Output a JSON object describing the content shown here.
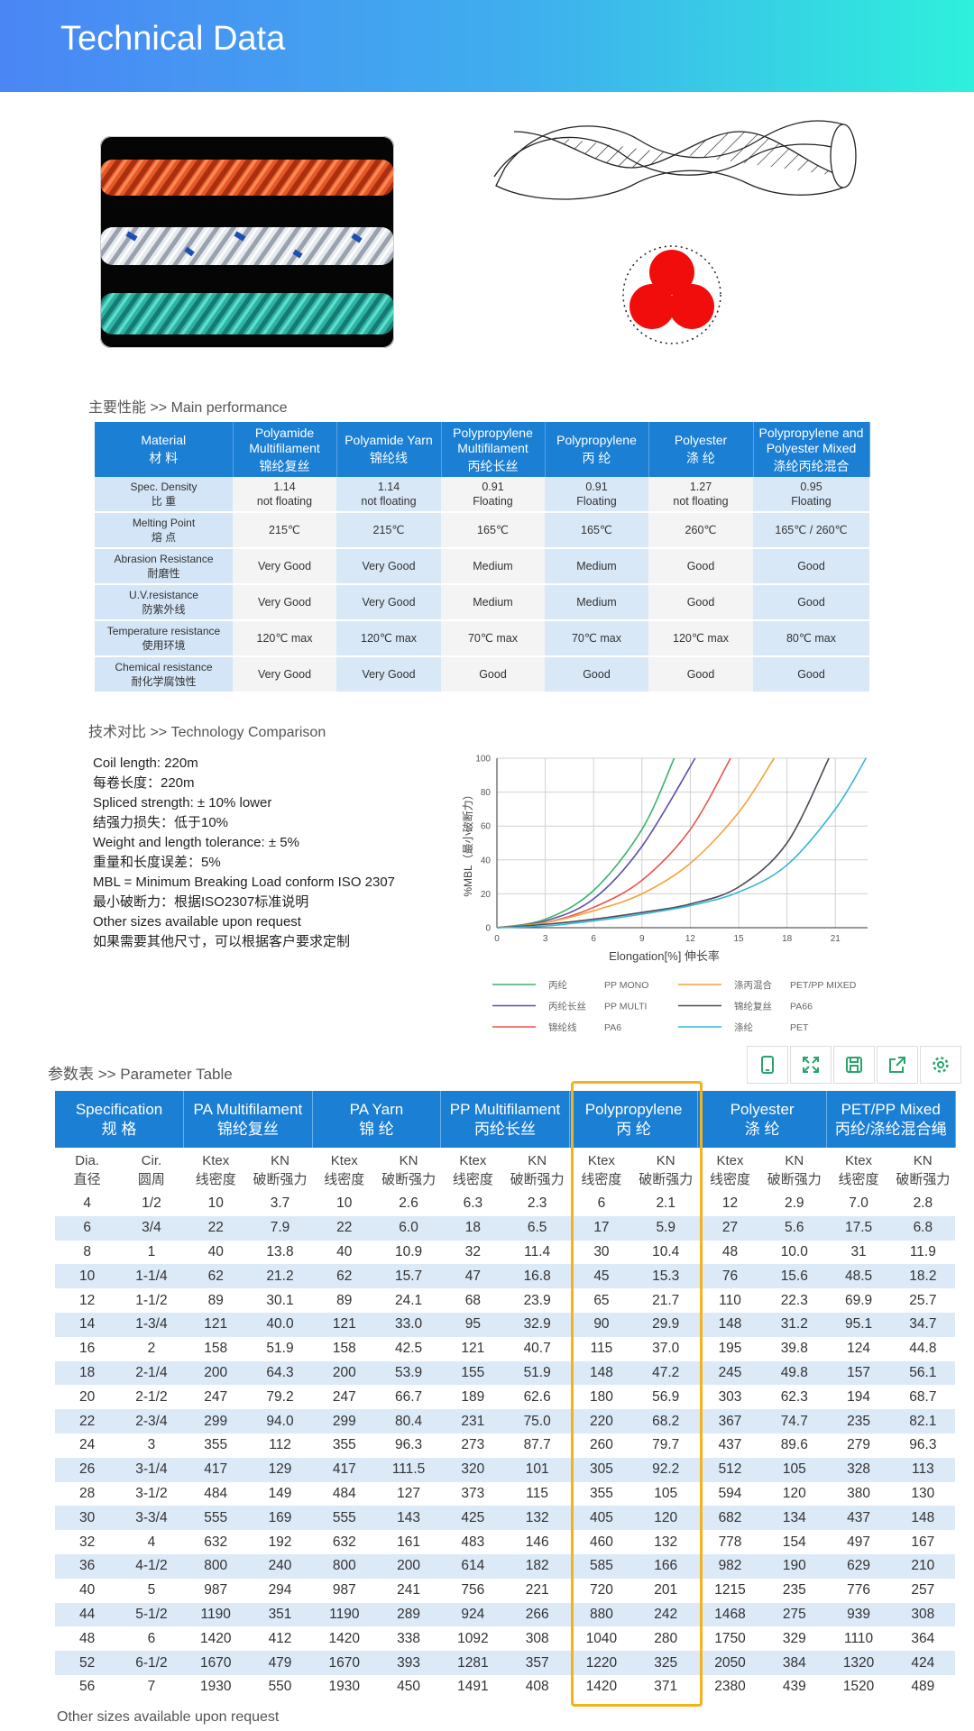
{
  "header": {
    "title": "Technical Data"
  },
  "performance": {
    "title": "主要性能 >> Main performance",
    "columns": [
      {
        "en": "Material",
        "zh": "材 料"
      },
      {
        "en": "Polyamide Multifilament",
        "zh": "锦纶复丝"
      },
      {
        "en": "Polyamide Yarn",
        "zh": "锦纶线"
      },
      {
        "en": "Polypropylene Multifilament",
        "zh": "丙纶长丝"
      },
      {
        "en": "Polypropylene",
        "zh": "丙 纶"
      },
      {
        "en": "Polyester",
        "zh": "涤 纶"
      },
      {
        "en": "Polypropylene and Polyester Mixed",
        "zh": "涤纶丙纶混合"
      }
    ],
    "rows": [
      {
        "en": "Spec. Density",
        "zh": "比 重",
        "cells": [
          "1.14\nnot floating",
          "1.14\nnot floating",
          "0.91\nFloating",
          "0.91\nFloating",
          "1.27\nnot floating",
          "0.95\nFloating"
        ]
      },
      {
        "en": "Melting Point",
        "zh": "熔 点",
        "cells": [
          "215℃",
          "215℃",
          "165℃",
          "165℃",
          "260℃",
          "165℃ / 260℃"
        ]
      },
      {
        "en": "Abrasion Resistance",
        "zh": "耐磨性",
        "cells": [
          "Very Good",
          "Very Good",
          "Medium",
          "Medium",
          "Good",
          "Good"
        ]
      },
      {
        "en": "U.V.resistance",
        "zh": "防紫外线",
        "cells": [
          "Very Good",
          "Very Good",
          "Medium",
          "Medium",
          "Good",
          "Good"
        ]
      },
      {
        "en": "Temperature resistance",
        "zh": "使用环境",
        "cells": [
          "120℃ max",
          "120℃ max",
          "70℃ max",
          "70℃ max",
          "120℃ max",
          "80℃ max"
        ]
      },
      {
        "en": "Chemical resistance",
        "zh": "耐化学腐蚀性",
        "cells": [
          "Very Good",
          "Very Good",
          "Good",
          "Good",
          "Good",
          "Good"
        ]
      }
    ]
  },
  "technology": {
    "title": "技术对比 >> Technology Comparison",
    "lines": [
      "Coil length: 220m",
      "每卷长度：220m",
      "Spliced strength: ± 10% lower",
      "结强力损失：低于10%",
      "Weight and length tolerance: ± 5%",
      "重量和长度误差：5%",
      "MBL = Minimum Breaking Load conform ISO 2307",
      "最小破断力：根据ISO2307标准说明",
      "Other sizes available upon request",
      "如果需要其他尺寸，可以根据客户要求定制"
    ]
  },
  "chart_data": {
    "type": "line",
    "x_label": "Elongation[%]  伸长率",
    "y_label": "%MBL（最小破断力）",
    "xlim": [
      0,
      23
    ],
    "ylim": [
      0,
      100
    ],
    "xticks": [
      0,
      3,
      6,
      9,
      12,
      15,
      18,
      21
    ],
    "yticks": [
      0,
      20,
      40,
      60,
      80,
      100
    ],
    "grid": true,
    "series": [
      {
        "name": "丙纶",
        "code": "PP MONO",
        "color": "#3cb36b",
        "x": [
          0,
          3,
          6,
          9,
          11
        ],
        "values": [
          0,
          5,
          22,
          58,
          100
        ]
      },
      {
        "name": "丙纶长丝",
        "code": "PP MULTI",
        "color": "#5a4fb0",
        "x": [
          0,
          3,
          6,
          9,
          12.3
        ],
        "values": [
          0,
          4,
          17,
          48,
          100
        ]
      },
      {
        "name": "锦纶线",
        "code": "PA6",
        "color": "#e9554a",
        "x": [
          0,
          3,
          6,
          9,
          12,
          14.5
        ],
        "values": [
          0,
          3,
          12,
          28,
          58,
          100
        ]
      },
      {
        "name": "涤丙混合",
        "code": "PET/PP MIXED",
        "color": "#f2a33a",
        "x": [
          0,
          3,
          6,
          9,
          12,
          15,
          17.2
        ],
        "values": [
          0,
          3,
          10,
          20,
          38,
          68,
          100
        ]
      },
      {
        "name": "锦纶复丝",
        "code": "PA66",
        "color": "#4a4a5a",
        "x": [
          0,
          3,
          6,
          9,
          12,
          15,
          18,
          20.6
        ],
        "values": [
          0,
          2,
          5,
          9,
          14,
          24,
          50,
          100
        ]
      },
      {
        "name": "涤纶",
        "code": "PET",
        "color": "#35b5d8",
        "x": [
          0,
          3,
          6,
          9,
          12,
          15,
          18,
          21,
          22.9
        ],
        "values": [
          0,
          1,
          4,
          8,
          13,
          21,
          37,
          70,
          100
        ]
      }
    ]
  },
  "parameter": {
    "title": "参数表 >> Parameter Table",
    "groups": [
      {
        "en": "Specification",
        "zh": "规 格"
      },
      {
        "en": "PA Multifilament",
        "zh": "锦纶复丝"
      },
      {
        "en": "PA Yarn",
        "zh": "锦 纶"
      },
      {
        "en": "PP Multifilament",
        "zh": "丙纶长丝"
      },
      {
        "en": "Polypropylene",
        "zh": "丙 纶"
      },
      {
        "en": "Polyester",
        "zh": "涤 纶"
      },
      {
        "en": "PET/PP Mixed",
        "zh": "丙纶/涤纶混合绳"
      }
    ],
    "subheaders": [
      {
        "en": "Dia.",
        "zh": "直径"
      },
      {
        "en": "Cir.",
        "zh": "圆周"
      },
      {
        "en": "Ktex",
        "zh": "线密度"
      },
      {
        "en": "KN",
        "zh": "破断强力"
      },
      {
        "en": "Ktex",
        "zh": "线密度"
      },
      {
        "en": "KN",
        "zh": "破断强力"
      },
      {
        "en": "Ktex",
        "zh": "线密度"
      },
      {
        "en": "KN",
        "zh": "破断强力"
      },
      {
        "en": "Ktex",
        "zh": "线密度"
      },
      {
        "en": "KN",
        "zh": "破断强力"
      },
      {
        "en": "Ktex",
        "zh": "线密度"
      },
      {
        "en": "KN",
        "zh": "破断强力"
      },
      {
        "en": "Ktex",
        "zh": "线密度"
      },
      {
        "en": "KN",
        "zh": "破断强力"
      }
    ],
    "rows": [
      [
        "4",
        "1/2",
        "10",
        "3.7",
        "10",
        "2.6",
        "6.3",
        "2.3",
        "6",
        "2.1",
        "12",
        "2.9",
        "7.0",
        "2.8"
      ],
      [
        "6",
        "3/4",
        "22",
        "7.9",
        "22",
        "6.0",
        "18",
        "6.5",
        "17",
        "5.9",
        "27",
        "5.6",
        "17.5",
        "6.8"
      ],
      [
        "8",
        "1",
        "40",
        "13.8",
        "40",
        "10.9",
        "32",
        "11.4",
        "30",
        "10.4",
        "48",
        "10.0",
        "31",
        "11.9"
      ],
      [
        "10",
        "1-1/4",
        "62",
        "21.2",
        "62",
        "15.7",
        "47",
        "16.8",
        "45",
        "15.3",
        "76",
        "15.6",
        "48.5",
        "18.2"
      ],
      [
        "12",
        "1-1/2",
        "89",
        "30.1",
        "89",
        "24.1",
        "68",
        "23.9",
        "65",
        "21.7",
        "110",
        "22.3",
        "69.9",
        "25.7"
      ],
      [
        "14",
        "1-3/4",
        "121",
        "40.0",
        "121",
        "33.0",
        "95",
        "32.9",
        "90",
        "29.9",
        "148",
        "31.2",
        "95.1",
        "34.7"
      ],
      [
        "16",
        "2",
        "158",
        "51.9",
        "158",
        "42.5",
        "121",
        "40.7",
        "115",
        "37.0",
        "195",
        "39.8",
        "124",
        "44.8"
      ],
      [
        "18",
        "2-1/4",
        "200",
        "64.3",
        "200",
        "53.9",
        "155",
        "51.9",
        "148",
        "47.2",
        "245",
        "49.8",
        "157",
        "56.1"
      ],
      [
        "20",
        "2-1/2",
        "247",
        "79.2",
        "247",
        "66.7",
        "189",
        "62.6",
        "180",
        "56.9",
        "303",
        "62.3",
        "194",
        "68.7"
      ],
      [
        "22",
        "2-3/4",
        "299",
        "94.0",
        "299",
        "80.4",
        "231",
        "75.0",
        "220",
        "68.2",
        "367",
        "74.7",
        "235",
        "82.1"
      ],
      [
        "24",
        "3",
        "355",
        "112",
        "355",
        "96.3",
        "273",
        "87.7",
        "260",
        "79.7",
        "437",
        "89.6",
        "279",
        "96.3"
      ],
      [
        "26",
        "3-1/4",
        "417",
        "129",
        "417",
        "111.5",
        "320",
        "101",
        "305",
        "92.2",
        "512",
        "105",
        "328",
        "113"
      ],
      [
        "28",
        "3-1/2",
        "484",
        "149",
        "484",
        "127",
        "373",
        "115",
        "355",
        "105",
        "594",
        "120",
        "380",
        "130"
      ],
      [
        "30",
        "3-3/4",
        "555",
        "169",
        "555",
        "143",
        "425",
        "132",
        "405",
        "120",
        "682",
        "134",
        "437",
        "148"
      ],
      [
        "32",
        "4",
        "632",
        "192",
        "632",
        "161",
        "483",
        "146",
        "460",
        "132",
        "778",
        "154",
        "497",
        "167"
      ],
      [
        "36",
        "4-1/2",
        "800",
        "240",
        "800",
        "200",
        "614",
        "182",
        "585",
        "166",
        "982",
        "190",
        "629",
        "210"
      ],
      [
        "40",
        "5",
        "987",
        "294",
        "987",
        "241",
        "756",
        "221",
        "720",
        "201",
        "1215",
        "235",
        "776",
        "257"
      ],
      [
        "44",
        "5-1/2",
        "1190",
        "351",
        "1190",
        "289",
        "924",
        "266",
        "880",
        "242",
        "1468",
        "275",
        "939",
        "308"
      ],
      [
        "48",
        "6",
        "1420",
        "412",
        "1420",
        "338",
        "1092",
        "308",
        "1040",
        "280",
        "1750",
        "329",
        "1110",
        "364"
      ],
      [
        "52",
        "6-1/2",
        "1670",
        "479",
        "1670",
        "393",
        "1281",
        "357",
        "1220",
        "325",
        "2050",
        "384",
        "1320",
        "424"
      ],
      [
        "56",
        "7",
        "1930",
        "550",
        "1930",
        "450",
        "1491",
        "408",
        "1420",
        "371",
        "2380",
        "439",
        "1520",
        "489"
      ]
    ],
    "footnote": "Other sizes available upon request"
  }
}
